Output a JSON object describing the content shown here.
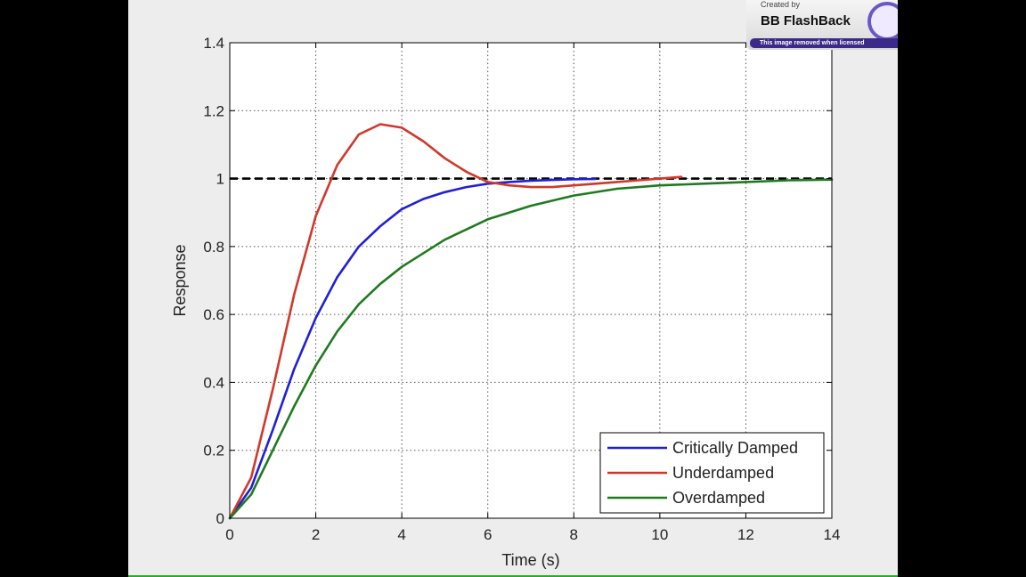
{
  "watermark": {
    "created_by": "Created by",
    "brand": "BB FlashBack",
    "notice": "This image removed when licensed"
  },
  "chart_data": {
    "type": "line",
    "title": "",
    "xlabel": "Time (s)",
    "ylabel": "Response",
    "xlim": [
      0,
      14
    ],
    "ylim": [
      0,
      1.4
    ],
    "xticks": [
      "0",
      "2",
      "4",
      "6",
      "8",
      "10",
      "12",
      "14"
    ],
    "yticks": [
      "0",
      "0.2",
      "0.4",
      "0.6",
      "0.8",
      "1",
      "1.2",
      "1.4"
    ],
    "grid": true,
    "legend_position": "bottom-right",
    "reference_line": {
      "y": 1,
      "style": "dashed",
      "color": "#000000"
    },
    "series": [
      {
        "name": "Critically Damped",
        "color": "#1f1fd6",
        "x": [
          0,
          0.5,
          1,
          1.5,
          2,
          2.5,
          3,
          3.5,
          4,
          4.5,
          5,
          5.5,
          6,
          6.5,
          7,
          7.5,
          8,
          8.5
        ],
        "y": [
          0,
          0.09,
          0.26,
          0.44,
          0.59,
          0.71,
          0.8,
          0.86,
          0.91,
          0.94,
          0.96,
          0.975,
          0.985,
          0.99,
          0.994,
          0.996,
          0.998,
          0.999
        ]
      },
      {
        "name": "Underdamped",
        "color": "#d0382a",
        "x": [
          0,
          0.5,
          1,
          1.5,
          2,
          2.5,
          3,
          3.5,
          4,
          4.5,
          5,
          5.5,
          6,
          6.5,
          7,
          7.5,
          8,
          8.5,
          9,
          9.5,
          10,
          10.5
        ],
        "y": [
          0,
          0.12,
          0.38,
          0.66,
          0.89,
          1.04,
          1.13,
          1.16,
          1.15,
          1.11,
          1.06,
          1.02,
          0.99,
          0.98,
          0.975,
          0.975,
          0.98,
          0.985,
          0.99,
          0.995,
          1.0,
          1.005
        ]
      },
      {
        "name": "Overdamped",
        "color": "#1f7a1f",
        "x": [
          0,
          0.5,
          1,
          1.5,
          2,
          2.5,
          3,
          3.5,
          4,
          5,
          6,
          7,
          8,
          9,
          10,
          11,
          12,
          13,
          14
        ],
        "y": [
          0,
          0.07,
          0.2,
          0.33,
          0.45,
          0.55,
          0.63,
          0.69,
          0.74,
          0.82,
          0.88,
          0.92,
          0.95,
          0.97,
          0.98,
          0.985,
          0.99,
          0.995,
          0.997
        ]
      }
    ]
  }
}
